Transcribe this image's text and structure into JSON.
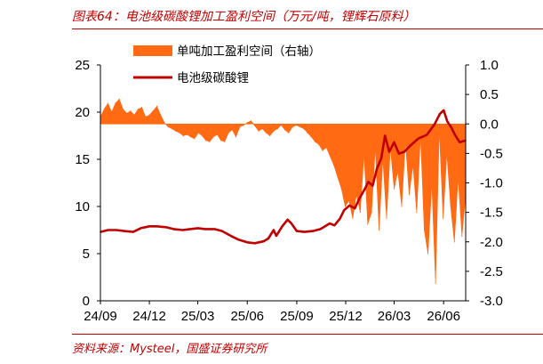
{
  "header": {
    "title": "图表64：电池级碳酸锂加工盈利空间（万元/吨，锂辉石原料）"
  },
  "footer": {
    "source": "资料来源：Mysteel，国盛证券研究所"
  },
  "chart_data": {
    "type": "area",
    "title": "",
    "legend_position": "top-left",
    "grid": false,
    "x_ticks": [
      "24/09",
      "24/12",
      "25/03",
      "25/06",
      "25/09",
      "25/12",
      "26/03",
      "26/06"
    ],
    "y_left": {
      "ylim": [
        0,
        25
      ],
      "ticks": [
        "0",
        "5",
        "10",
        "15",
        "20",
        "25"
      ]
    },
    "y_right": {
      "ylim": [
        -3,
        1
      ],
      "ticks": [
        "1.0",
        "0.5",
        "0.0",
        "-0.5",
        "-1.0",
        "-1.5",
        "-2.0",
        "-2.5",
        "-3.0"
      ]
    },
    "series": [
      {
        "name": "单吨加工盈利空间（右轴）",
        "type": "area",
        "axis": "right",
        "color": "#ff6a13",
        "points": [
          [
            "2024-09-01",
            0.12
          ],
          [
            "2024-09-08",
            0.25
          ],
          [
            "2024-09-15",
            0.35
          ],
          [
            "2024-09-22",
            0.2
          ],
          [
            "2024-09-29",
            0.35
          ],
          [
            "2024-10-06",
            0.42
          ],
          [
            "2024-10-13",
            0.25
          ],
          [
            "2024-10-20",
            0.18
          ],
          [
            "2024-10-27",
            0.22
          ],
          [
            "2024-11-03",
            0.15
          ],
          [
            "2024-11-10",
            0.25
          ],
          [
            "2024-11-17",
            0.28
          ],
          [
            "2024-11-24",
            0.12
          ],
          [
            "2024-12-01",
            0.15
          ],
          [
            "2024-12-08",
            0.22
          ],
          [
            "2024-12-15",
            0.3
          ],
          [
            "2024-12-22",
            0.15
          ],
          [
            "2024-12-29",
            0.02
          ],
          [
            "2025-01-05",
            -0.05
          ],
          [
            "2025-01-12",
            -0.08
          ],
          [
            "2025-01-19",
            -0.12
          ],
          [
            "2025-01-26",
            -0.15
          ],
          [
            "2025-02-02",
            -0.2
          ],
          [
            "2025-02-09",
            -0.18
          ],
          [
            "2025-02-16",
            -0.22
          ],
          [
            "2025-02-23",
            -0.25
          ],
          [
            "2025-03-02",
            -0.15
          ],
          [
            "2025-03-09",
            -0.2
          ],
          [
            "2025-03-16",
            -0.28
          ],
          [
            "2025-03-23",
            -0.3
          ],
          [
            "2025-03-30",
            -0.22
          ],
          [
            "2025-04-06",
            -0.18
          ],
          [
            "2025-04-13",
            -0.28
          ],
          [
            "2025-04-20",
            -0.3
          ],
          [
            "2025-04-27",
            -0.15
          ],
          [
            "2025-05-04",
            -0.1
          ],
          [
            "2025-05-11",
            -0.22
          ],
          [
            "2025-05-18",
            -0.05
          ],
          [
            "2025-05-25",
            -0.02
          ],
          [
            "2025-06-01",
            0.02
          ],
          [
            "2025-06-08",
            0.05
          ],
          [
            "2025-06-15",
            -0.03
          ],
          [
            "2025-06-22",
            -0.12
          ],
          [
            "2025-06-29",
            -0.08
          ],
          [
            "2025-07-06",
            -0.15
          ],
          [
            "2025-07-13",
            -0.2
          ],
          [
            "2025-07-20",
            -0.12
          ],
          [
            "2025-07-27",
            -0.08
          ],
          [
            "2025-08-03",
            -0.02
          ],
          [
            "2025-08-10",
            -0.1
          ],
          [
            "2025-08-17",
            -0.15
          ],
          [
            "2025-08-24",
            -0.05
          ],
          [
            "2025-08-31",
            -0.02
          ],
          [
            "2025-09-07",
            -0.05
          ],
          [
            "2025-09-14",
            -0.08
          ],
          [
            "2025-09-21",
            -0.15
          ],
          [
            "2025-09-28",
            -0.22
          ],
          [
            "2025-10-05",
            -0.3
          ],
          [
            "2025-10-12",
            -0.35
          ],
          [
            "2025-10-19",
            -0.45
          ],
          [
            "2025-10-26",
            -0.4
          ],
          [
            "2025-11-02",
            -0.55
          ],
          [
            "2025-11-09",
            -0.7
          ],
          [
            "2025-11-16",
            -0.9
          ],
          [
            "2025-11-23",
            -1.1
          ],
          [
            "2025-11-30",
            -1.4
          ],
          [
            "2025-12-07",
            -1.3
          ],
          [
            "2025-12-14",
            -1.6
          ],
          [
            "2025-12-21",
            -1.2
          ],
          [
            "2025-12-28",
            -1.5
          ],
          [
            "2026-01-04",
            -0.5
          ],
          [
            "2026-01-11",
            -1.7
          ],
          [
            "2026-01-18",
            -1.5
          ],
          [
            "2026-01-25",
            -0.4
          ],
          [
            "2026-02-01",
            -1.8
          ],
          [
            "2026-02-08",
            -0.6
          ],
          [
            "2026-02-15",
            -1.6
          ],
          [
            "2026-02-22",
            -0.4
          ],
          [
            "2026-03-01",
            -1.1
          ],
          [
            "2026-03-08",
            -0.8
          ],
          [
            "2026-03-15",
            -1.4
          ],
          [
            "2026-03-22",
            -0.3
          ],
          [
            "2026-03-29",
            -1.2
          ],
          [
            "2026-04-05",
            -0.7
          ],
          [
            "2026-04-12",
            -1.5
          ],
          [
            "2026-04-19",
            -0.2
          ],
          [
            "2026-04-26",
            -1.8
          ],
          [
            "2026-05-03",
            -2.2
          ],
          [
            "2026-05-10",
            -1.0
          ],
          [
            "2026-05-17",
            -2.7
          ],
          [
            "2026-05-24",
            -0.1
          ],
          [
            "2026-05-31",
            -1.6
          ],
          [
            "2026-06-07",
            -0.5
          ],
          [
            "2026-06-14",
            -1.4
          ],
          [
            "2026-06-21",
            -2.0
          ],
          [
            "2026-06-28",
            -0.9
          ],
          [
            "2026-07-05",
            -1.9
          ],
          [
            "2026-07-12",
            -1.2
          ]
        ]
      },
      {
        "name": "电池级碳酸锂",
        "type": "line",
        "axis": "left",
        "color": "#c00000",
        "points": [
          [
            "2024-09-01",
            7.3
          ],
          [
            "2024-09-15",
            7.5
          ],
          [
            "2024-10-01",
            7.5
          ],
          [
            "2024-10-15",
            7.4
          ],
          [
            "2024-11-01",
            7.3
          ],
          [
            "2024-11-15",
            7.7
          ],
          [
            "2024-12-01",
            7.9
          ],
          [
            "2024-12-15",
            7.9
          ],
          [
            "2025-01-01",
            7.8
          ],
          [
            "2025-01-15",
            7.6
          ],
          [
            "2025-02-01",
            7.5
          ],
          [
            "2025-02-15",
            7.6
          ],
          [
            "2025-03-01",
            7.7
          ],
          [
            "2025-03-15",
            7.6
          ],
          [
            "2025-04-01",
            7.6
          ],
          [
            "2025-04-15",
            7.4
          ],
          [
            "2025-05-01",
            6.9
          ],
          [
            "2025-05-15",
            6.5
          ],
          [
            "2025-06-01",
            6.2
          ],
          [
            "2025-06-15",
            6.1
          ],
          [
            "2025-07-01",
            6.3
          ],
          [
            "2025-07-10",
            6.6
          ],
          [
            "2025-07-20",
            7.5
          ],
          [
            "2025-07-25",
            6.9
          ],
          [
            "2025-08-05",
            7.9
          ],
          [
            "2025-08-15",
            8.6
          ],
          [
            "2025-08-22",
            8.2
          ],
          [
            "2025-09-01",
            7.4
          ],
          [
            "2025-09-15",
            7.3
          ],
          [
            "2025-10-01",
            7.4
          ],
          [
            "2025-10-15",
            7.6
          ],
          [
            "2025-11-01",
            8.2
          ],
          [
            "2025-11-10",
            8.0
          ],
          [
            "2025-11-20",
            8.7
          ],
          [
            "2025-11-28",
            9.6
          ],
          [
            "2025-12-08",
            10.1
          ],
          [
            "2025-12-18",
            9.8
          ],
          [
            "2025-12-26",
            10.8
          ],
          [
            "2026-01-05",
            11.8
          ],
          [
            "2026-01-12",
            12.6
          ],
          [
            "2026-01-20",
            12.2
          ],
          [
            "2026-01-28",
            14.0
          ],
          [
            "2026-02-05",
            15.1
          ],
          [
            "2026-02-12",
            17.5
          ],
          [
            "2026-02-20",
            15.8
          ],
          [
            "2026-03-01",
            16.8
          ],
          [
            "2026-03-10",
            15.6
          ],
          [
            "2026-03-20",
            15.8
          ],
          [
            "2026-04-01",
            16.5
          ],
          [
            "2026-04-15",
            17.2
          ],
          [
            "2026-05-01",
            17.6
          ],
          [
            "2026-05-15",
            18.7
          ],
          [
            "2026-05-25",
            19.8
          ],
          [
            "2026-06-01",
            20.2
          ],
          [
            "2026-06-08",
            19.0
          ],
          [
            "2026-06-15",
            18.4
          ],
          [
            "2026-06-22",
            17.6
          ],
          [
            "2026-07-01",
            16.8
          ],
          [
            "2026-07-12",
            17.0
          ]
        ]
      }
    ]
  }
}
